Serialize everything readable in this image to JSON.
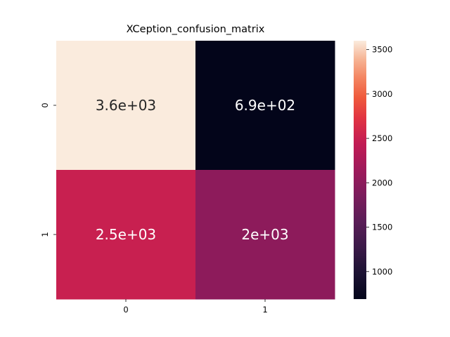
{
  "chart_data": {
    "type": "heatmap",
    "title": "XCeption_confusion_matrix",
    "x_tick_labels": [
      "0",
      "1"
    ],
    "y_tick_labels": [
      "0",
      "1"
    ],
    "values": [
      [
        3600,
        690
      ],
      [
        2500,
        2000
      ]
    ],
    "annotations": [
      [
        "3.6e+03",
        "6.9e+02"
      ],
      [
        "2.5e+03",
        "2e+03"
      ]
    ],
    "colormap": "rocket",
    "colorbar": {
      "range": [
        690,
        3600
      ],
      "ticks": [
        1000,
        1500,
        2000,
        2500,
        3000,
        3500
      ],
      "tick_labels": [
        "1000",
        "1500",
        "2000",
        "2500",
        "3000",
        "3500"
      ]
    },
    "colors": {
      "low": "#03051a",
      "high": "#faebdd"
    }
  }
}
